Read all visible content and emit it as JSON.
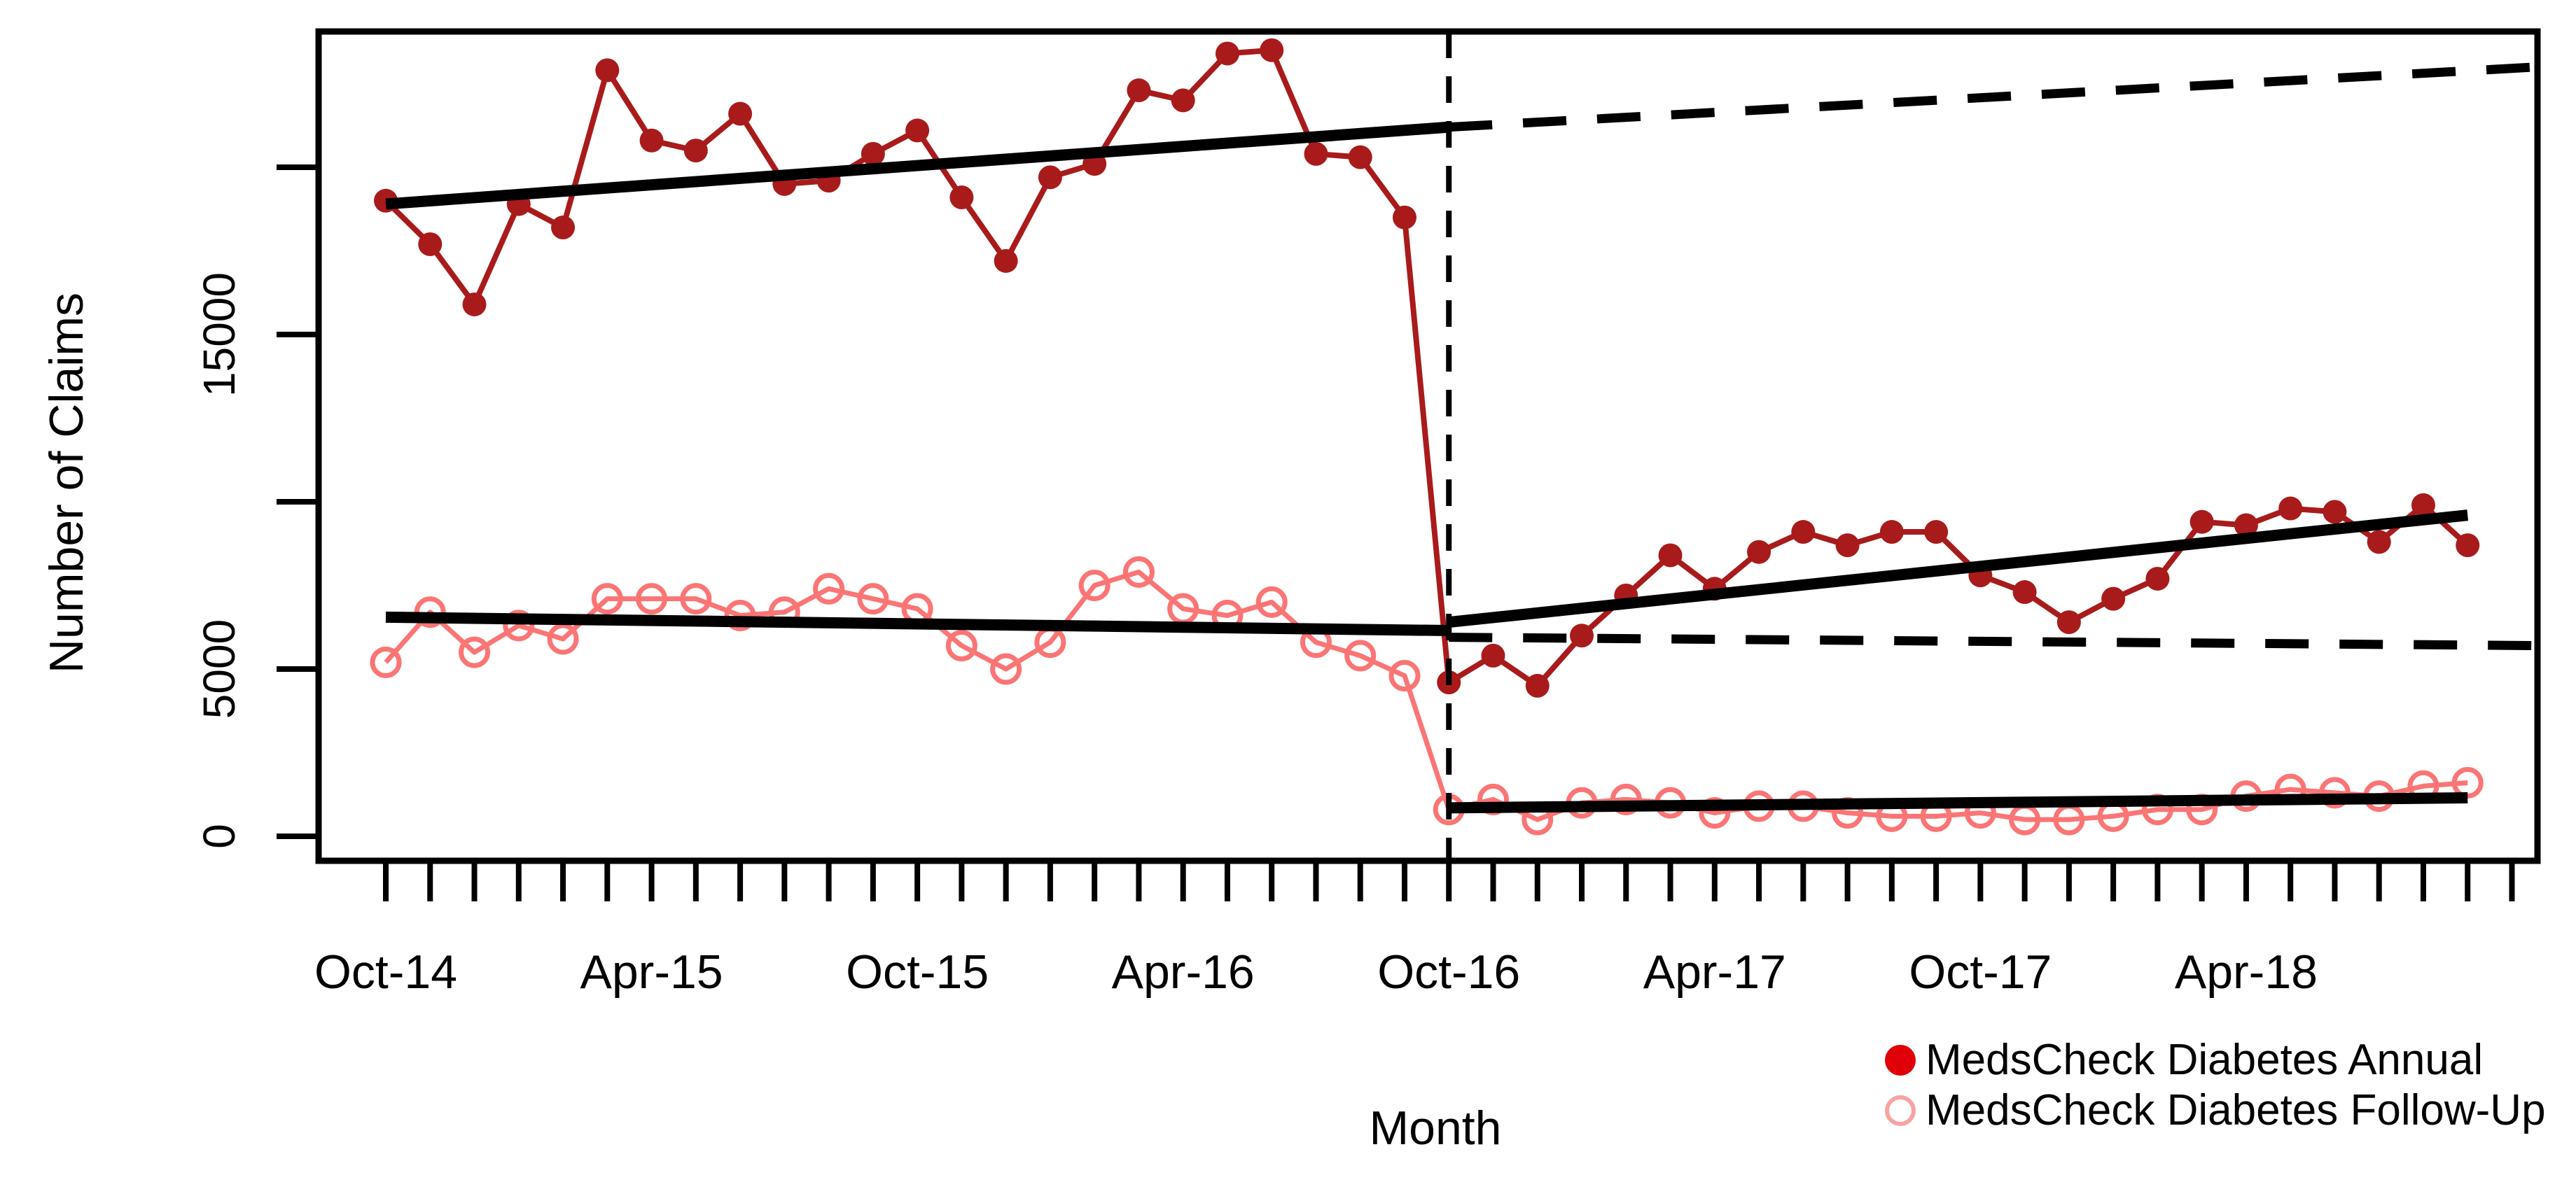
{
  "figure": {
    "background_color": "#ffffff"
  },
  "axes": {
    "y_title": "Number of Claims",
    "x_title": "Month"
  },
  "legend": {
    "items": [
      {
        "label": "MedsCheck Diabetes Annual",
        "marker": "filled-circle",
        "color": "#E00008"
      },
      {
        "label": "MedsCheck Diabetes Follow-Up",
        "marker": "open-circle",
        "color": "#F9A2A2"
      }
    ]
  },
  "chart_data": {
    "type": "line",
    "title": "",
    "xlabel": "Month",
    "ylabel": "Number of Claims",
    "ylim": [
      -730,
      24060
    ],
    "grid": false,
    "legend_position": "bottom-right",
    "months": [
      "Oct-14",
      "Nov-14",
      "Dec-14",
      "Jan-15",
      "Feb-15",
      "Mar-15",
      "Apr-15",
      "May-15",
      "Jun-15",
      "Jul-15",
      "Aug-15",
      "Sep-15",
      "Oct-15",
      "Nov-15",
      "Dec-15",
      "Jan-16",
      "Feb-16",
      "Mar-16",
      "Apr-16",
      "May-16",
      "Jun-16",
      "Jul-16",
      "Aug-16",
      "Sep-16",
      "Oct-16",
      "Nov-16",
      "Dec-16",
      "Jan-17",
      "Feb-17",
      "Mar-17",
      "Apr-17",
      "May-17",
      "Jun-17",
      "Jul-17",
      "Aug-17",
      "Sep-17",
      "Oct-17",
      "Nov-17",
      "Dec-17",
      "Jan-18",
      "Feb-18",
      "Mar-18",
      "Apr-18",
      "May-18",
      "Jun-18",
      "Jul-18",
      "Aug-18",
      "Sep-18"
    ],
    "x_tick_labels": [
      "Oct-14",
      "Apr-15",
      "Oct-15",
      "Apr-16",
      "Oct-16",
      "Apr-17",
      "Oct-17",
      "Apr-18"
    ],
    "x_tick_month_index": [
      0,
      6,
      12,
      18,
      24,
      30,
      36,
      42
    ],
    "y_ticks": [
      {
        "value": 0,
        "label": "0"
      },
      {
        "value": 5000,
        "label": "5000"
      },
      {
        "value": 10000,
        "label": ""
      },
      {
        "value": 15000,
        "label": "15000"
      },
      {
        "value": 20000,
        "label": ""
      }
    ],
    "series": [
      {
        "name": "MedsCheck Diabetes Annual",
        "marker": "filled-circle",
        "line_color": "#A91B1B",
        "marker_color": "#A91B1B",
        "values": [
          19000,
          17700,
          15900,
          18900,
          18200,
          22900,
          20800,
          20500,
          21600,
          19500,
          19600,
          20400,
          21100,
          19100,
          17200,
          19700,
          20100,
          22300,
          22000,
          23400,
          23500,
          20400,
          20300,
          18500,
          4600,
          5400,
          4500,
          6000,
          7200,
          8400,
          7400,
          8500,
          9100,
          8700,
          9100,
          9100,
          7800,
          7300,
          6400,
          7100,
          7700,
          9400,
          9300,
          9800,
          9700,
          8800,
          9900,
          8700
        ]
      },
      {
        "name": "MedsCheck Diabetes Follow-Up",
        "marker": "open-circle",
        "line_color": "#FB7575",
        "marker_color": "#FB7575",
        "values": [
          5200,
          6700,
          5500,
          6300,
          5900,
          7100,
          7100,
          7100,
          6600,
          6700,
          7400,
          7100,
          6800,
          5700,
          5000,
          5800,
          7500,
          7900,
          6800,
          6600,
          7000,
          5800,
          5400,
          4800,
          800,
          1100,
          500,
          1000,
          1100,
          1000,
          700,
          900,
          900,
          700,
          600,
          600,
          700,
          500,
          500,
          600,
          800,
          800,
          1200,
          1400,
          1300,
          1200,
          1500,
          1600
        ]
      }
    ],
    "intervention_line": {
      "month_index": 24,
      "month_label": "Oct-16",
      "style": "dashed",
      "color": "#000000"
    },
    "trend_lines": [
      {
        "name": "annual-pre-trend",
        "style": "solid",
        "color": "#000000",
        "from_month": 0,
        "to_month": 24,
        "from_value": 18900,
        "to_value": 21200
      },
      {
        "name": "annual-counterfactual-trend",
        "style": "dashed",
        "color": "#000000",
        "from_month": 24,
        "to_month": 48.6,
        "from_value": 21200,
        "to_value": 23000
      },
      {
        "name": "annual-post-trend",
        "style": "solid",
        "color": "#000000",
        "from_month": 24,
        "to_month": 47,
        "from_value": 6400,
        "to_value": 9600
      },
      {
        "name": "followup-pre-trend",
        "style": "solid",
        "color": "#000000",
        "from_month": 0,
        "to_month": 24,
        "from_value": 6550,
        "to_value": 6150
      },
      {
        "name": "followup-counterfactual-trend",
        "style": "dashed",
        "color": "#000000",
        "from_month": 24,
        "to_month": 48.6,
        "from_value": 5950,
        "to_value": 5700
      },
      {
        "name": "followup-post-trend",
        "style": "solid",
        "color": "#000000",
        "from_month": 24,
        "to_month": 47,
        "from_value": 850,
        "to_value": 1150
      }
    ]
  }
}
